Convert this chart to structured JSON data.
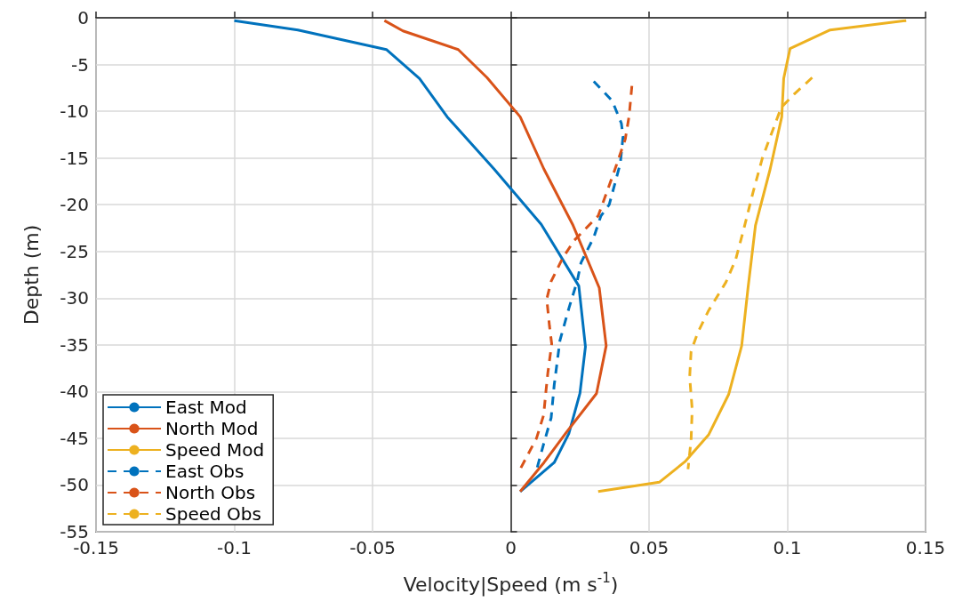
{
  "chart_data": {
    "type": "line",
    "xlabel": "Velocity|Speed (m s$^{-1}$)",
    "ylabel": "Depth (m)",
    "xlim": [
      -0.15,
      0.15
    ],
    "xticks": [
      -0.15,
      -0.1,
      -0.05,
      0,
      0.05,
      0.1,
      0.15
    ],
    "ylim": [
      -55,
      0
    ],
    "yticks": [
      -55,
      -50,
      -45,
      -40,
      -35,
      -30,
      -25,
      -20,
      -15,
      -10,
      -5,
      0
    ],
    "grid": true,
    "legend": "bottom left",
    "marker": "none",
    "series": [
      {
        "name": "East Mod",
        "color": "#0072bd",
        "line_style": "solid",
        "x": [
          -0.1,
          -0.077,
          -0.045,
          -0.033,
          -0.023,
          -0.006,
          0.011,
          0.0246,
          0.027,
          0.025,
          0.021,
          0.0157,
          0.0034
        ],
        "values": [
          -0.3,
          -1.3,
          -3.4,
          -6.5,
          -10.6,
          -16.2,
          -22.1,
          -28.7,
          -35.2,
          -40.2,
          -44.5,
          -47.6,
          -50.7
        ]
      },
      {
        "name": "North Mod",
        "color": "#d95319",
        "line_style": "solid",
        "x": [
          -0.0457,
          -0.039,
          -0.019,
          -0.0086,
          0.0034,
          0.012,
          0.0225,
          0.032,
          0.0345,
          0.031,
          0.02,
          0.012,
          0.0034
        ],
        "values": [
          -0.3,
          -1.4,
          -3.4,
          -6.4,
          -10.6,
          -16.2,
          -22.2,
          -28.9,
          -35.1,
          -40.2,
          -44.4,
          -47.6,
          -50.7
        ]
      },
      {
        "name": "Speed Mod",
        "color": "#edb120",
        "line_style": "solid",
        "x": [
          0.143,
          0.1155,
          0.101,
          0.0987,
          0.098,
          0.0938,
          0.0885,
          0.0858,
          0.0835,
          0.0788,
          0.0716,
          0.063,
          0.0537,
          0.0316
        ],
        "values": [
          -0.3,
          -1.3,
          -3.3,
          -6.5,
          -10.6,
          -16.2,
          -22.2,
          -28.9,
          -35.1,
          -40.3,
          -44.6,
          -47.5,
          -49.7,
          -50.7
        ]
      },
      {
        "name": "East Obs",
        "color": "#0072bd",
        "line_style": "dashed",
        "x": [
          0.03,
          0.0326,
          0.0367,
          0.04,
          0.0406,
          0.0396,
          0.0356,
          0.0326,
          0.03,
          0.0254,
          0.024,
          0.021,
          0.0178,
          0.0157,
          0.0146,
          0.0118,
          0.0093
        ],
        "values": [
          -6.8,
          -7.6,
          -8.9,
          -11.3,
          -12.7,
          -15.6,
          -20.0,
          -21.2,
          -23.5,
          -26.2,
          -28.2,
          -31.1,
          -34.5,
          -39.3,
          -42.8,
          -45.7,
          -48.4
        ]
      },
      {
        "name": "North Obs",
        "color": "#d95319",
        "line_style": "dashed",
        "x": [
          0.0438,
          0.0428,
          0.0414,
          0.037,
          0.0316,
          0.023,
          0.0188,
          0.0146,
          0.013,
          0.014,
          0.0148,
          0.0134,
          0.0127,
          0.0119,
          0.0093,
          0.0034
        ],
        "values": [
          -7.3,
          -10.5,
          -13,
          -16.8,
          -21.2,
          -23.8,
          -25.7,
          -28.2,
          -30.1,
          -33,
          -34.9,
          -38,
          -40,
          -42.5,
          -45,
          -48.3
        ]
      },
      {
        "name": "Speed Obs",
        "color": "#edb120",
        "line_style": "dashed",
        "x": [
          0.109,
          0.1024,
          0.0978,
          0.0944,
          0.091,
          0.0875,
          0.0841,
          0.0813,
          0.0778,
          0.0716,
          0.0676,
          0.0652,
          0.0647,
          0.0656,
          0.0652,
          0.0641
        ],
        "values": [
          -6.4,
          -8.2,
          -9.6,
          -12.3,
          -15,
          -18.8,
          -22.8,
          -25.9,
          -28.3,
          -31.3,
          -33.7,
          -35.7,
          -38.4,
          -41.9,
          -45.2,
          -48.3
        ]
      }
    ]
  }
}
